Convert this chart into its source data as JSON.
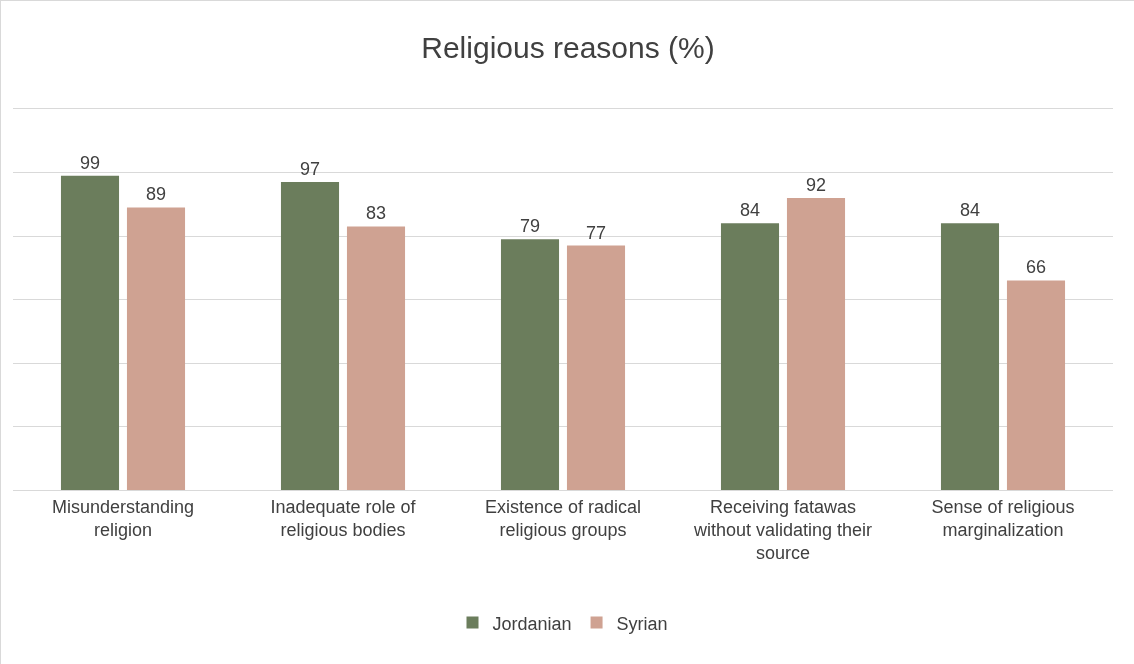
{
  "chart_data": {
    "type": "bar",
    "title": "Religious reasons (%)",
    "categories": [
      "Misunderstanding religion",
      "Inadequate role of religious bodies",
      "Existence of radical religious groups",
      "Receiving fatawas without validating their source",
      "Sense of religious marginalization"
    ],
    "series": [
      {
        "name": "Jordanian",
        "color": "#6b7d5c",
        "values": [
          99,
          97,
          79,
          84,
          84
        ]
      },
      {
        "name": "Syrian",
        "color": "#cfa292",
        "values": [
          89,
          83,
          77,
          92,
          66
        ]
      }
    ],
    "ylim": [
      0,
      120
    ],
    "yticks": [
      {
        "value": 0,
        "label": null
      },
      {
        "value": 20,
        "label": null
      },
      {
        "value": 40,
        "label": null
      },
      {
        "value": 60,
        "label": null
      },
      {
        "value": 80,
        "label": null
      },
      {
        "value": 100,
        "label": null
      },
      {
        "value": 120,
        "label": null
      }
    ],
    "data_labels": true,
    "grid": "y",
    "legend": "bottom",
    "tick_labels": "x"
  }
}
